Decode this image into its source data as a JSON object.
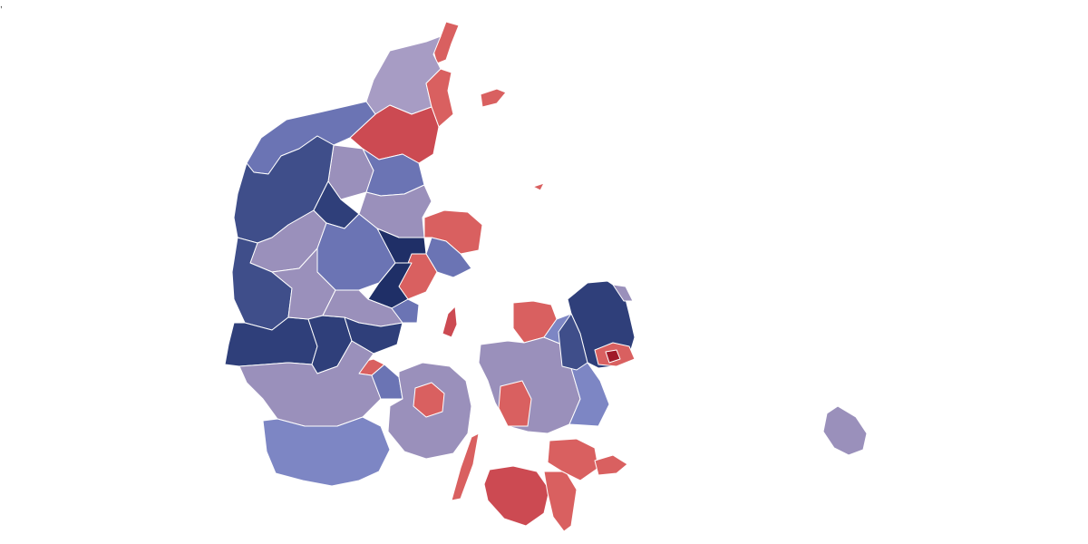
{
  "corner_text": ",",
  "legend_scale": {
    "palette": {
      "navy_dark": "#1f2f67",
      "navy": "#2f3f7a",
      "blue_mid": "#3f4e8a",
      "blue": "#6b74b4",
      "periwinkle": "#7d86c4",
      "lavender": "#9a90bb",
      "lilac": "#a79cc4",
      "red_light": "#d96060",
      "red": "#cc4a52",
      "red_dark": "#b8323c",
      "crimson": "#a01b2a"
    }
  },
  "regions": [
    {
      "id": "north-tip",
      "fill": "red_light"
    },
    {
      "id": "north-lavender",
      "fill": "lilac"
    },
    {
      "id": "north-east-red",
      "fill": "red_light"
    },
    {
      "id": "laeso",
      "fill": "red_light"
    },
    {
      "id": "anholt",
      "fill": "red_light"
    },
    {
      "id": "vendsyssel-red",
      "fill": "red"
    },
    {
      "id": "thy-coast",
      "fill": "blue"
    },
    {
      "id": "mors",
      "fill": "lavender"
    },
    {
      "id": "west-navy",
      "fill": "blue_mid"
    },
    {
      "id": "central-navy",
      "fill": "navy"
    },
    {
      "id": "central-blue",
      "fill": "blue"
    },
    {
      "id": "central-lavender",
      "fill": "lavender"
    },
    {
      "id": "djursland-red",
      "fill": "red_light"
    },
    {
      "id": "aarhus-red",
      "fill": "red_light"
    },
    {
      "id": "aarhus-navy",
      "fill": "navy_dark"
    },
    {
      "id": "south-west-navy",
      "fill": "navy"
    },
    {
      "id": "south-jutland",
      "fill": "periwinkle"
    },
    {
      "id": "south-jutland-lav",
      "fill": "lavender"
    },
    {
      "id": "vejle-red",
      "fill": "red_light"
    },
    {
      "id": "samso",
      "fill": "red"
    },
    {
      "id": "funen-lav",
      "fill": "lavender"
    },
    {
      "id": "odense-red",
      "fill": "red_light"
    },
    {
      "id": "langeland",
      "fill": "red_light"
    },
    {
      "id": "zealand-north-red",
      "fill": "red_light"
    },
    {
      "id": "zealand-west",
      "fill": "lavender"
    },
    {
      "id": "zealand-mid",
      "fill": "periwinkle"
    },
    {
      "id": "zealand-south-red",
      "fill": "red_light"
    },
    {
      "id": "capital-navy",
      "fill": "navy"
    },
    {
      "id": "capital-blue",
      "fill": "blue_mid"
    },
    {
      "id": "copenhagen-red",
      "fill": "red_light"
    },
    {
      "id": "copenhagen-core",
      "fill": "crimson"
    },
    {
      "id": "lolland",
      "fill": "red"
    },
    {
      "id": "falster",
      "fill": "red_light"
    },
    {
      "id": "moen",
      "fill": "red_light"
    },
    {
      "id": "bornholm",
      "fill": "lavender"
    }
  ]
}
